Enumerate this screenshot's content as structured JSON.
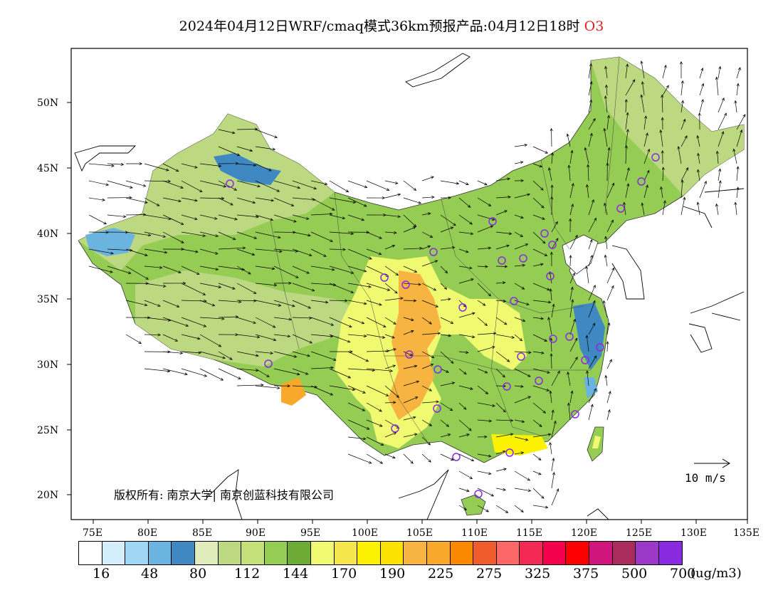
{
  "title": {
    "main": "2024年04月12日WRF/cmaq模式36km预报产品:04月12日18时",
    "species": "O3"
  },
  "map": {
    "lat_labels": [
      "50N",
      "45N",
      "40N",
      "35N",
      "30N",
      "25N",
      "20N"
    ],
    "lon_labels": [
      "75E",
      "80E",
      "85E",
      "90E",
      "95E",
      "100E",
      "105E",
      "110E",
      "115E",
      "120E",
      "125E",
      "130E",
      "135E"
    ],
    "copyright": "版权所有: 南京大学| 南京创蓝科技有限公司",
    "wind_reference": "10 m/s"
  },
  "colorbar": {
    "colors": [
      "#ffffff",
      "#d4eefc",
      "#9ed6f4",
      "#6cb4e0",
      "#4088c2",
      "#e0ecbc",
      "#bcd880",
      "#c4e078",
      "#94cc54",
      "#6eaa36",
      "#f0fa70",
      "#f4e64c",
      "#fcf200",
      "#fce200",
      "#f8b440",
      "#f8a82a",
      "#fc8800",
      "#f05c2c",
      "#fc6868",
      "#f42a54",
      "#f4004c",
      "#fc0000",
      "#d0167c",
      "#a82c5c",
      "#9c38c8",
      "#8a2ae0"
    ],
    "labels": [
      "16",
      "48",
      "80",
      "112",
      "144",
      "170",
      "190",
      "225",
      "275",
      "325",
      "375",
      "500",
      "700"
    ],
    "unit": "(ug/m3)"
  }
}
